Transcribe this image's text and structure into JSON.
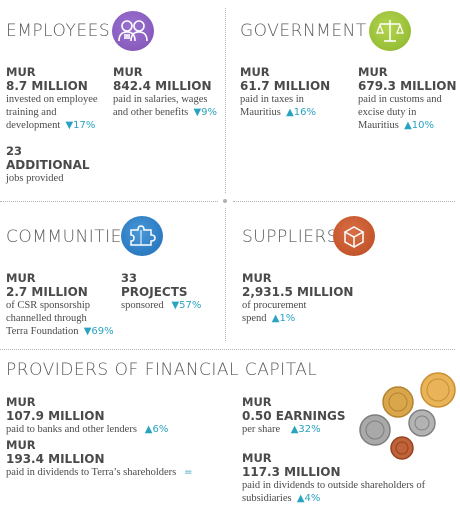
{
  "employees": {
    "title": "EMPLOYEES",
    "icon": "people-icon",
    "icon_color": "#8a5fc0",
    "items": [
      {
        "currency": "MUR",
        "amount": "8.7 MILLION",
        "desc": [
          "invested on employee",
          "training and",
          "development"
        ],
        "change": "▼17%"
      },
      {
        "currency": "MUR",
        "amount": "842.4 MILLION",
        "desc": [
          "paid in salaries, wages",
          "and other benefits"
        ],
        "change": "▼9%"
      },
      {
        "currency": "23",
        "amount": "ADDITIONAL",
        "desc": [
          "jobs provided"
        ],
        "change": ""
      }
    ]
  },
  "government": {
    "title": "GOVERNMENT",
    "icon": "scales-icon",
    "icon_color": "#9cc23a",
    "items": [
      {
        "currency": "MUR",
        "amount": "61.7 MILLION",
        "desc": [
          "paid in taxes in",
          "Mauritius"
        ],
        "change": "▲16%"
      },
      {
        "currency": "MUR",
        "amount": "679.3 MILLION",
        "desc": [
          "paid in customs and",
          "excise duty in",
          "Mauritius"
        ],
        "change": "▲10%"
      }
    ]
  },
  "communities": {
    "title": "COMMUNITIES",
    "icon": "puzzle-icon",
    "icon_color": "#2f7fc6",
    "items": [
      {
        "currency": "MUR",
        "amount": "2.7 MILLION",
        "desc": [
          "of CSR sponsorship",
          "channelled through",
          "Terra Foundation"
        ],
        "change": "▼69%"
      },
      {
        "currency": "33",
        "amount": "PROJECTS",
        "desc": [
          "sponsored"
        ],
        "change": "▼57%"
      }
    ]
  },
  "suppliers": {
    "title": "SUPPLIERS",
    "icon": "box-icon",
    "icon_color": "#c8592f",
    "items": [
      {
        "currency": "MUR",
        "amount": "2,931.5 MILLION",
        "desc": [
          "of procurement",
          "spend"
        ],
        "change": "▲1%"
      }
    ]
  },
  "financial": {
    "title": "PROVIDERS OF FINANCIAL CAPITAL",
    "icon": "coins-icon",
    "items": [
      {
        "currency": "MUR",
        "amount": "107.9 MILLION",
        "desc": [
          "paid to banks and other lenders"
        ],
        "change": "▲6%"
      },
      {
        "currency": "MUR",
        "amount": "193.4 MILLION",
        "desc": [
          "paid in dividends to Terra’s shareholders"
        ],
        "change": "="
      },
      {
        "currency": "MUR",
        "amount": "0.50 EARNINGS",
        "desc": [
          "per share"
        ],
        "change": "▲32%"
      },
      {
        "currency": "MUR",
        "amount": "117.3 MILLION",
        "desc": [
          "paid in dividends to outside shareholders of",
          "subsidiaries"
        ],
        "change": "▲4%"
      }
    ]
  },
  "colors": {
    "accent": "#29a3c0",
    "text": "#4a4a4a"
  }
}
